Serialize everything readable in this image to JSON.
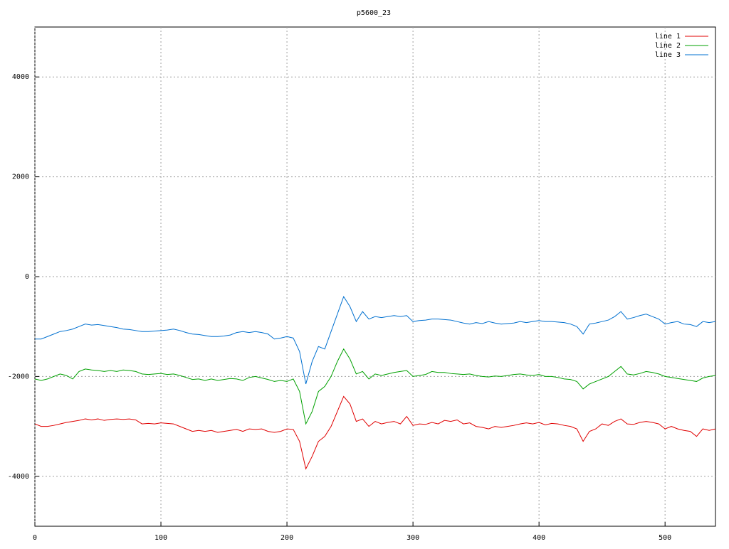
{
  "chart_data": {
    "type": "line",
    "title": "p5600_23",
    "x": [
      0,
      5,
      10,
      15,
      20,
      25,
      30,
      35,
      40,
      45,
      50,
      55,
      60,
      65,
      70,
      75,
      80,
      85,
      90,
      95,
      100,
      105,
      110,
      115,
      120,
      125,
      130,
      135,
      140,
      145,
      150,
      155,
      160,
      165,
      170,
      175,
      180,
      185,
      190,
      195,
      200,
      205,
      210,
      215,
      220,
      225,
      230,
      235,
      240,
      245,
      250,
      255,
      260,
      265,
      270,
      275,
      280,
      285,
      290,
      295,
      300,
      305,
      310,
      315,
      320,
      325,
      330,
      335,
      340,
      345,
      350,
      355,
      360,
      365,
      370,
      375,
      380,
      385,
      390,
      395,
      400,
      405,
      410,
      415,
      420,
      425,
      430,
      435,
      440,
      445,
      450,
      455,
      460,
      465,
      470,
      475,
      480,
      485,
      490,
      495,
      500,
      505,
      510,
      515,
      520,
      525,
      530,
      535,
      540
    ],
    "series": [
      {
        "name": "line 1",
        "color": "#e00000",
        "values": [
          -2950,
          -3000,
          -3000,
          -2980,
          -2950,
          -2920,
          -2900,
          -2880,
          -2850,
          -2870,
          -2850,
          -2880,
          -2860,
          -2850,
          -2860,
          -2850,
          -2870,
          -2950,
          -2940,
          -2950,
          -2930,
          -2940,
          -2950,
          -3000,
          -3050,
          -3100,
          -3080,
          -3100,
          -3080,
          -3120,
          -3100,
          -3080,
          -3060,
          -3100,
          -3050,
          -3060,
          -3050,
          -3100,
          -3120,
          -3100,
          -3050,
          -3060,
          -3300,
          -3850,
          -3600,
          -3300,
          -3200,
          -3000,
          -2700,
          -2400,
          -2550,
          -2900,
          -2850,
          -3000,
          -2900,
          -2950,
          -2920,
          -2900,
          -2950,
          -2800,
          -2980,
          -2950,
          -2960,
          -2920,
          -2950,
          -2880,
          -2900,
          -2870,
          -2950,
          -2930,
          -3000,
          -3020,
          -3050,
          -3000,
          -3020,
          -3000,
          -2980,
          -2950,
          -2930,
          -2950,
          -2920,
          -2970,
          -2940,
          -2950,
          -2980,
          -3000,
          -3050,
          -3300,
          -3100,
          -3050,
          -2950,
          -2980,
          -2900,
          -2850,
          -2950,
          -2960,
          -2920,
          -2900,
          -2920,
          -2950,
          -3050,
          -3000,
          -3050,
          -3080,
          -3100,
          -3200,
          -3050,
          -3080,
          -3050
        ]
      },
      {
        "name": "line 2",
        "color": "#00a000",
        "values": [
          -2050,
          -2080,
          -2050,
          -2000,
          -1950,
          -1980,
          -2050,
          -1900,
          -1850,
          -1870,
          -1880,
          -1900,
          -1880,
          -1900,
          -1870,
          -1880,
          -1900,
          -1950,
          -1960,
          -1950,
          -1940,
          -1960,
          -1950,
          -1980,
          -2020,
          -2060,
          -2050,
          -2080,
          -2050,
          -2080,
          -2060,
          -2040,
          -2050,
          -2080,
          -2020,
          -2000,
          -2030,
          -2060,
          -2100,
          -2080,
          -2100,
          -2050,
          -2300,
          -2950,
          -2700,
          -2300,
          -2200,
          -2000,
          -1700,
          -1450,
          -1650,
          -1950,
          -1900,
          -2050,
          -1950,
          -1980,
          -1950,
          -1920,
          -1900,
          -1880,
          -2000,
          -1980,
          -1960,
          -1900,
          -1920,
          -1920,
          -1940,
          -1950,
          -1960,
          -1950,
          -1980,
          -2000,
          -2010,
          -1990,
          -2000,
          -1980,
          -1960,
          -1950,
          -1970,
          -1980,
          -1960,
          -2000,
          -2000,
          -2020,
          -2050,
          -2060,
          -2100,
          -2250,
          -2150,
          -2100,
          -2050,
          -2000,
          -1900,
          -1800,
          -1950,
          -1970,
          -1940,
          -1900,
          -1920,
          -1950,
          -2000,
          -2020,
          -2040,
          -2060,
          -2080,
          -2100,
          -2030,
          -2000,
          -1980
        ]
      },
      {
        "name": "line 3",
        "color": "#0070d0",
        "values": [
          -1250,
          -1250,
          -1200,
          -1150,
          -1100,
          -1080,
          -1050,
          -1000,
          -950,
          -970,
          -960,
          -980,
          -1000,
          -1020,
          -1050,
          -1060,
          -1080,
          -1100,
          -1100,
          -1090,
          -1080,
          -1070,
          -1050,
          -1080,
          -1120,
          -1150,
          -1160,
          -1180,
          -1200,
          -1200,
          -1190,
          -1170,
          -1120,
          -1100,
          -1120,
          -1100,
          -1120,
          -1150,
          -1250,
          -1230,
          -1200,
          -1230,
          -1500,
          -2150,
          -1700,
          -1400,
          -1450,
          -1100,
          -750,
          -400,
          -600,
          -900,
          -700,
          -850,
          -800,
          -820,
          -800,
          -780,
          -800,
          -780,
          -900,
          -880,
          -870,
          -850,
          -850,
          -860,
          -870,
          -900,
          -930,
          -950,
          -920,
          -940,
          -900,
          -930,
          -950,
          -940,
          -930,
          -900,
          -920,
          -900,
          -880,
          -900,
          -900,
          -910,
          -920,
          -950,
          -1000,
          -1150,
          -950,
          -930,
          -900,
          -870,
          -800,
          -700,
          -850,
          -820,
          -780,
          -750,
          -800,
          -850,
          -950,
          -920,
          -900,
          -950,
          -960,
          -1000,
          -900,
          -920,
          -900
        ]
      }
    ],
    "xlim": [
      0,
      540
    ],
    "ylim": [
      -5000,
      5000
    ],
    "xticks": [
      0,
      100,
      200,
      300,
      400,
      500
    ],
    "yticks": [
      -4000,
      -2000,
      0,
      2000,
      4000
    ],
    "grid": true,
    "legend": "top-right"
  }
}
